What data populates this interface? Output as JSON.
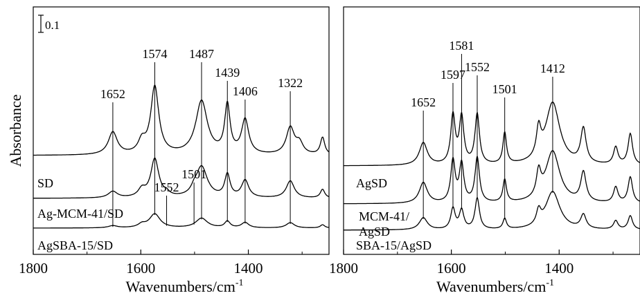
{
  "chart_data": [
    {
      "type": "line",
      "panel": "left",
      "xlabel": "Wavenumbers/cm",
      "xlabel_superscript": "-1",
      "ylabel": "Absorbance",
      "xlim": [
        1800,
        1250
      ],
      "xticks": [
        1800,
        1600,
        1400
      ],
      "scale_bar": {
        "label": "0.1",
        "value": 0.1
      },
      "series": [
        {
          "name": "SD",
          "baseline": 0.0,
          "peaks": [
            {
              "x": 1652,
              "h": 0.21,
              "w": 10
            },
            {
              "x": 1598,
              "h": 0.11,
              "w": 8
            },
            {
              "x": 1574,
              "h": 0.63,
              "w": 9
            },
            {
              "x": 1487,
              "h": 0.5,
              "w": 13
            },
            {
              "x": 1439,
              "h": 0.45,
              "w": 6
            },
            {
              "x": 1406,
              "h": 0.32,
              "w": 8
            },
            {
              "x": 1322,
              "h": 0.25,
              "w": 9
            },
            {
              "x": 1305,
              "h": 0.1,
              "w": 8
            },
            {
              "x": 1262,
              "h": 0.16,
              "w": 5
            }
          ]
        },
        {
          "name": "Ag-MCM-41/SD",
          "baseline": 0.0,
          "peaks": [
            {
              "x": 1652,
              "h": 0.06,
              "w": 10
            },
            {
              "x": 1598,
              "h": 0.07,
              "w": 8
            },
            {
              "x": 1574,
              "h": 0.36,
              "w": 9
            },
            {
              "x": 1552,
              "h": 0.03,
              "w": 6
            },
            {
              "x": 1501,
              "h": 0.04,
              "w": 6
            },
            {
              "x": 1487,
              "h": 0.29,
              "w": 13
            },
            {
              "x": 1439,
              "h": 0.21,
              "w": 6
            },
            {
              "x": 1406,
              "h": 0.16,
              "w": 8
            },
            {
              "x": 1322,
              "h": 0.16,
              "w": 9
            },
            {
              "x": 1262,
              "h": 0.08,
              "w": 5
            }
          ]
        },
        {
          "name": "AgSBA-15/SD",
          "baseline": 0.0,
          "peaks": [
            {
              "x": 1652,
              "h": 0.02,
              "w": 10
            },
            {
              "x": 1598,
              "h": 0.03,
              "w": 8
            },
            {
              "x": 1574,
              "h": 0.13,
              "w": 12
            },
            {
              "x": 1487,
              "h": 0.09,
              "w": 13
            },
            {
              "x": 1439,
              "h": 0.06,
              "w": 6
            },
            {
              "x": 1406,
              "h": 0.05,
              "w": 8
            },
            {
              "x": 1322,
              "h": 0.05,
              "w": 9
            },
            {
              "x": 1262,
              "h": 0.03,
              "w": 5
            }
          ]
        }
      ],
      "annotations": [
        {
          "label": "1652",
          "x": 1652
        },
        {
          "label": "1574",
          "x": 1574
        },
        {
          "label": "1552",
          "x": 1552
        },
        {
          "label": "1501",
          "x": 1501
        },
        {
          "label": "1487",
          "x": 1487
        },
        {
          "label": "1439",
          "x": 1439
        },
        {
          "label": "1406",
          "x": 1406
        },
        {
          "label": "1322",
          "x": 1322
        }
      ]
    },
    {
      "type": "line",
      "panel": "right",
      "xlabel": "Wavenumbers/cm",
      "xlabel_superscript": "-1",
      "xlim": [
        1800,
        1250
      ],
      "xticks": [
        1800,
        1600,
        1400
      ],
      "series": [
        {
          "name": "AgSD",
          "peaks": [
            {
              "x": 1652,
              "h": 0.13,
              "w": 9
            },
            {
              "x": 1597,
              "h": 0.28,
              "w": 5
            },
            {
              "x": 1581,
              "h": 0.27,
              "w": 5
            },
            {
              "x": 1552,
              "h": 0.29,
              "w": 5
            },
            {
              "x": 1501,
              "h": 0.18,
              "w": 4
            },
            {
              "x": 1438,
              "h": 0.16,
              "w": 5
            },
            {
              "x": 1412,
              "h": 0.36,
              "w": 16
            },
            {
              "x": 1355,
              "h": 0.2,
              "w": 6
            },
            {
              "x": 1295,
              "h": 0.1,
              "w": 5
            },
            {
              "x": 1268,
              "h": 0.18,
              "w": 5
            }
          ]
        },
        {
          "name": "MCM-41/AgSD",
          "name_lines": [
            "MCM-41/",
            "AgSD"
          ],
          "peaks": [
            {
              "x": 1652,
              "h": 0.12,
              "w": 9
            },
            {
              "x": 1597,
              "h": 0.24,
              "w": 5
            },
            {
              "x": 1581,
              "h": 0.22,
              "w": 5
            },
            {
              "x": 1552,
              "h": 0.26,
              "w": 5
            },
            {
              "x": 1501,
              "h": 0.13,
              "w": 4
            },
            {
              "x": 1438,
              "h": 0.14,
              "w": 5
            },
            {
              "x": 1412,
              "h": 0.3,
              "w": 16
            },
            {
              "x": 1355,
              "h": 0.17,
              "w": 6
            },
            {
              "x": 1295,
              "h": 0.09,
              "w": 5
            },
            {
              "x": 1268,
              "h": 0.15,
              "w": 5
            }
          ]
        },
        {
          "name": "SBA-15/AgSD",
          "peaks": [
            {
              "x": 1652,
              "h": 0.07,
              "w": 9
            },
            {
              "x": 1597,
              "h": 0.12,
              "w": 5
            },
            {
              "x": 1581,
              "h": 0.11,
              "w": 5
            },
            {
              "x": 1552,
              "h": 0.18,
              "w": 5
            },
            {
              "x": 1501,
              "h": 0.06,
              "w": 4
            },
            {
              "x": 1438,
              "h": 0.08,
              "w": 5
            },
            {
              "x": 1412,
              "h": 0.22,
              "w": 16
            },
            {
              "x": 1355,
              "h": 0.08,
              "w": 6
            },
            {
              "x": 1295,
              "h": 0.05,
              "w": 5
            },
            {
              "x": 1268,
              "h": 0.08,
              "w": 5
            }
          ]
        }
      ],
      "annotations": [
        {
          "label": "1652",
          "x": 1652
        },
        {
          "label": "1597",
          "x": 1597
        },
        {
          "label": "1581",
          "x": 1581
        },
        {
          "label": "1552",
          "x": 1552
        },
        {
          "label": "1501",
          "x": 1501
        },
        {
          "label": "1412",
          "x": 1412
        }
      ]
    }
  ]
}
